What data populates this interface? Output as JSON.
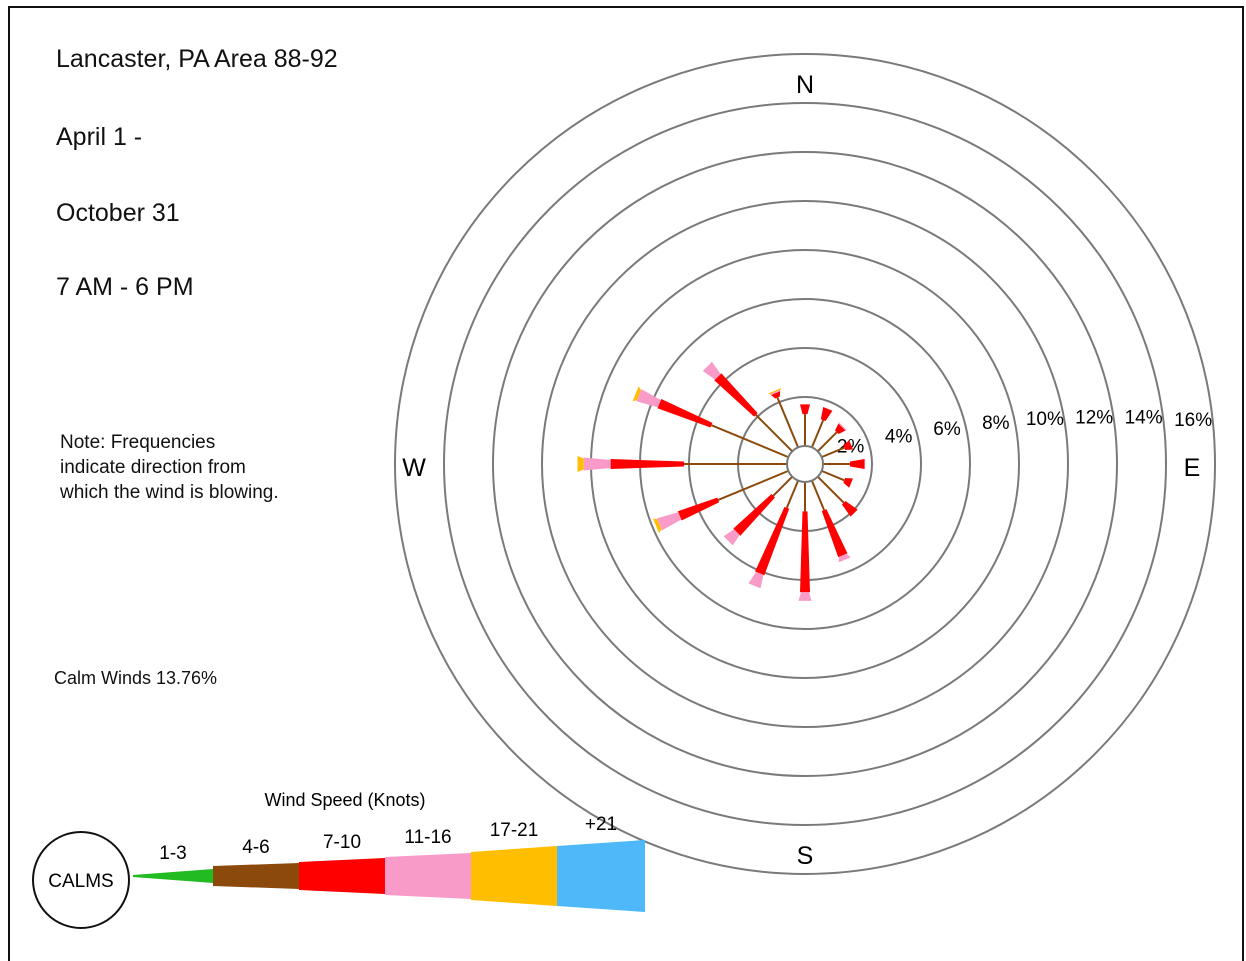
{
  "chart_data": {
    "type": "wind-rose",
    "title": "Lancaster, PA  Area  88-92",
    "subtitle_lines": [
      "April 1 -",
      "October  31",
      "7 AM  -  6  PM"
    ],
    "note": "Note: Frequencies indicate direction from which the wind is blowing.",
    "calm": {
      "label": "Calm Winds  13.76%",
      "value": 13.76
    },
    "rings": {
      "values": [
        2,
        4,
        6,
        8,
        10,
        12,
        14,
        16
      ],
      "labels": [
        "2%",
        "4%",
        "6%",
        "8%",
        "10%",
        "12%",
        "14%",
        "16%"
      ]
    },
    "compass": {
      "N": "N",
      "E": "E",
      "S": "S",
      "W": "W"
    },
    "legend": {
      "title": "Wind Speed (Knots)",
      "calms_label": "CALMS",
      "classes": [
        {
          "label": "1-3",
          "color": "#22bb22"
        },
        {
          "label": "4-6",
          "color": "#8b4a0c"
        },
        {
          "label": "7-10",
          "color": "#ff0000"
        },
        {
          "label": "11-16",
          "color": "#f99bc8"
        },
        {
          "label": "17-21",
          "color": "#ffbf00"
        },
        {
          "label": "+21",
          "color": "#4fb8f8"
        }
      ]
    },
    "speed_classes": [
      "1-3",
      "4-6",
      "7-10",
      "11-16",
      "17-21",
      "+21"
    ],
    "directions": [
      {
        "dir": "N",
        "deg": 0,
        "segments": [
          0,
          1.3,
          0.4,
          0,
          0,
          0
        ]
      },
      {
        "dir": "NNE",
        "deg": 22.5,
        "segments": [
          0,
          1.2,
          0.5,
          0,
          0,
          0
        ]
      },
      {
        "dir": "NE",
        "deg": 45,
        "segments": [
          0,
          1.1,
          0.3,
          0.05,
          0,
          0
        ]
      },
      {
        "dir": "ENE",
        "deg": 67.5,
        "segments": [
          0,
          1.0,
          0.3,
          0,
          0,
          0
        ]
      },
      {
        "dir": "E",
        "deg": 90,
        "segments": [
          0,
          1.1,
          0.6,
          0,
          0,
          0
        ]
      },
      {
        "dir": "ESE",
        "deg": 112.5,
        "segments": [
          0,
          1.0,
          0.3,
          0,
          0,
          0
        ]
      },
      {
        "dir": "SE",
        "deg": 135,
        "segments": [
          0,
          1.5,
          0.6,
          0,
          0,
          0
        ]
      },
      {
        "dir": "SSE",
        "deg": 157.5,
        "segments": [
          0,
          1.3,
          2.0,
          0.2,
          0,
          0
        ]
      },
      {
        "dir": "S",
        "deg": 180,
        "segments": [
          0,
          1.2,
          3.3,
          0.35,
          0,
          0
        ]
      },
      {
        "dir": "SSW",
        "deg": 202.5,
        "segments": [
          0,
          1.2,
          2.9,
          0.55,
          0,
          0
        ]
      },
      {
        "dir": "SW",
        "deg": 225,
        "segments": [
          0,
          1.1,
          2.1,
          0.5,
          0,
          0
        ]
      },
      {
        "dir": "WSW",
        "deg": 247.5,
        "segments": [
          0,
          3.1,
          1.7,
          0.9,
          0.15,
          0
        ]
      },
      {
        "dir": "W",
        "deg": 270,
        "segments": [
          0,
          4.2,
          3.0,
          1.1,
          0.25,
          0
        ]
      },
      {
        "dir": "WNW",
        "deg": 292.5,
        "segments": [
          0,
          3.4,
          2.3,
          0.9,
          0.15,
          0
        ]
      },
      {
        "dir": "NW",
        "deg": 315,
        "segments": [
          0,
          2.1,
          2.2,
          0.6,
          0,
          0
        ]
      },
      {
        "dir": "NNW",
        "deg": 337.5,
        "segments": [
          0,
          2.2,
          0.2,
          0.05,
          0.05,
          0
        ]
      }
    ]
  }
}
